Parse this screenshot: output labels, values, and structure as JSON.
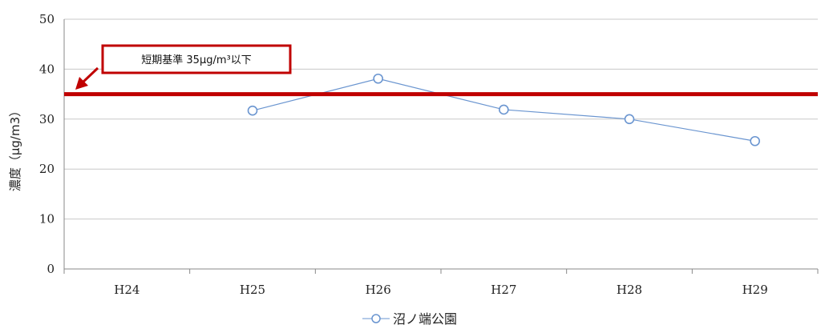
{
  "chart_data": {
    "type": "line",
    "categories": [
      "H24",
      "H25",
      "H26",
      "H27",
      "H28",
      "H29"
    ],
    "series": [
      {
        "name": "沼ノ端公園",
        "values": [
          null,
          31.7,
          38.1,
          31.9,
          30.0,
          25.6
        ],
        "color": "#6a95d0"
      }
    ],
    "ylabel": "濃度（μg/m3）",
    "ylim": [
      0,
      50
    ],
    "yticks": [
      0,
      10,
      20,
      30,
      40,
      50
    ],
    "grid": true,
    "legend_position": "bottom",
    "reference_line": {
      "value": 35,
      "color": "#c00000"
    },
    "annotation": {
      "text": "短期基準 35μg/m³以下",
      "color": "#c00000"
    }
  }
}
